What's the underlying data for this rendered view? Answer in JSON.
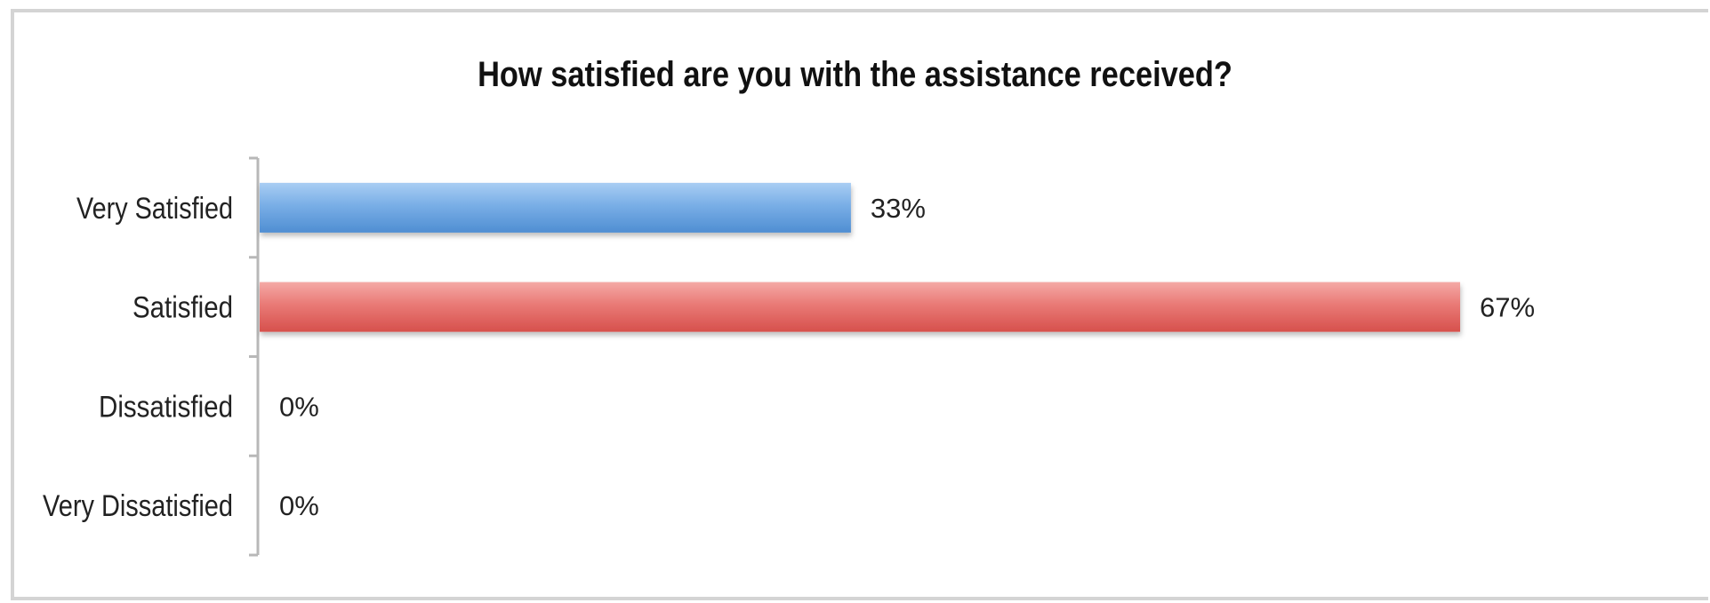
{
  "chart_data": {
    "type": "bar",
    "orientation": "horizontal",
    "title": "How satisfied are you with the assistance received?",
    "categories": [
      "Very Satisfied",
      "Satisfied",
      "Dissatisfied",
      "Very Dissatisfied"
    ],
    "values": [
      33,
      67,
      0,
      0
    ],
    "value_labels": [
      "33%",
      "67%",
      "0%",
      "0%"
    ],
    "value_unit": "%",
    "xlim": [
      0,
      67
    ],
    "grid": false,
    "legend": "none",
    "colors": [
      "#6fa5df",
      "#e5706c",
      "#9dbfe0",
      "#9dbfe0"
    ],
    "xlabel": "",
    "ylabel": ""
  }
}
